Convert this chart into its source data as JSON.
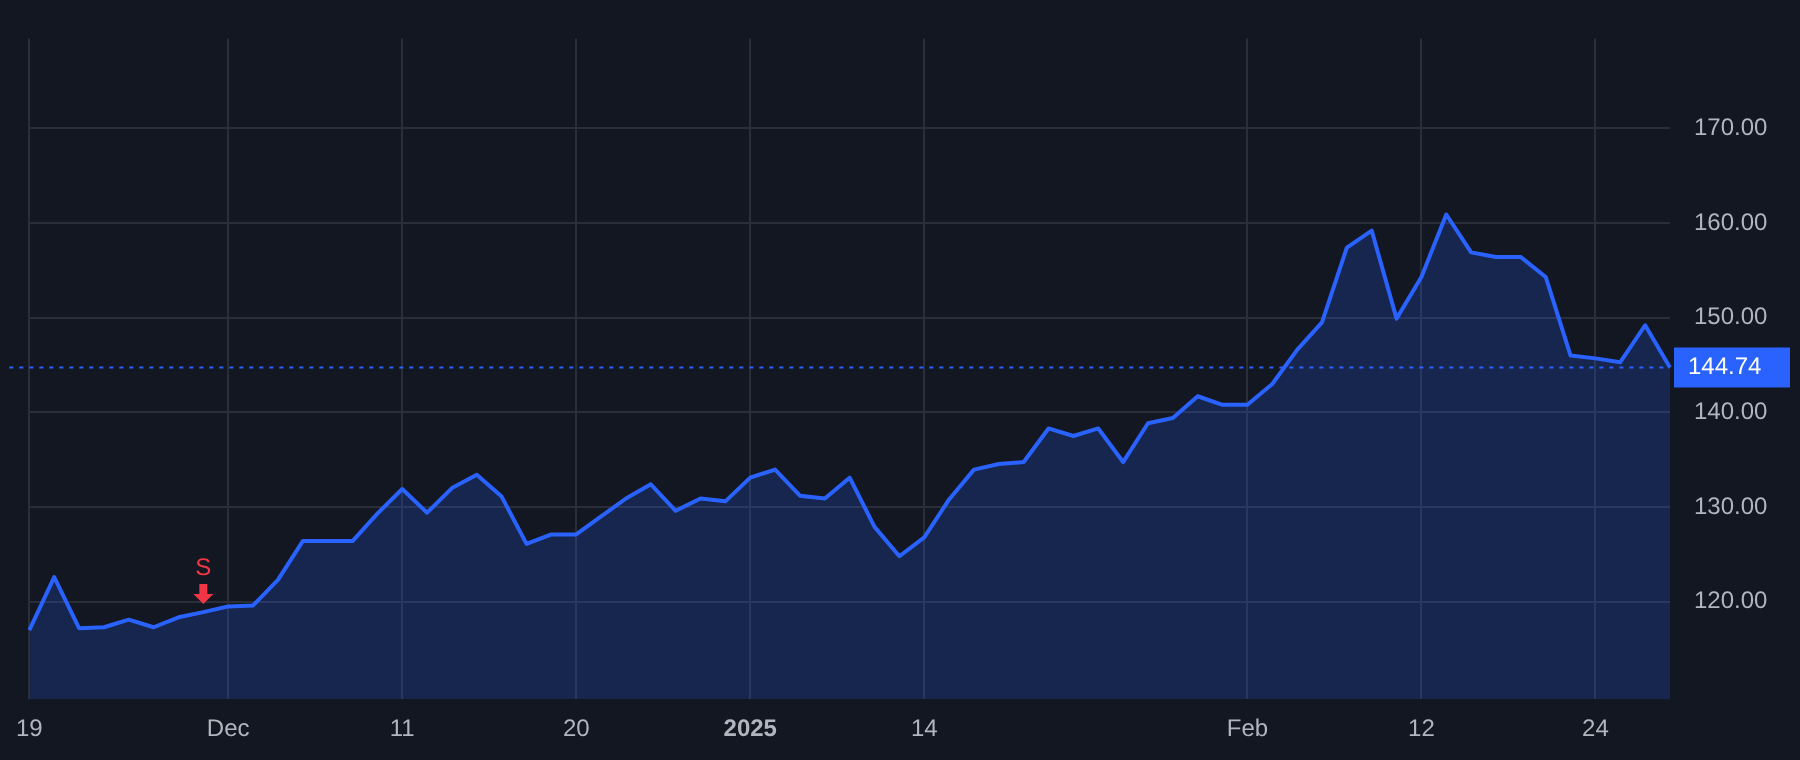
{
  "chart_data": {
    "type": "area",
    "categories": [
      "19",
      null,
      null,
      null,
      null,
      null,
      null,
      null,
      "Dec",
      null,
      null,
      null,
      null,
      null,
      null,
      "11",
      null,
      null,
      null,
      null,
      null,
      null,
      "20",
      null,
      null,
      null,
      null,
      null,
      null,
      "2025",
      null,
      null,
      null,
      null,
      null,
      null,
      "14",
      null,
      null,
      null,
      null,
      null,
      null,
      null,
      null,
      null,
      null,
      null,
      null,
      "Feb",
      null,
      null,
      null,
      null,
      null,
      null,
      "12",
      null,
      null,
      null,
      null,
      null,
      null,
      "24",
      null,
      null,
      null
    ],
    "series": [
      {
        "color": "#2962ff",
        "values": [
          117.0,
          122.6,
          117.2,
          117.3,
          118.1,
          117.3,
          118.35,
          118.9,
          119.5,
          119.6,
          122.3,
          126.4,
          126.4,
          126.4,
          129.3,
          131.9,
          129.4,
          132.0,
          133.4,
          131.1,
          126.1,
          127.1,
          127.1,
          129.0,
          130.9,
          132.4,
          129.6,
          130.9,
          130.6,
          133.1,
          133.95,
          131.2,
          130.9,
          133.1,
          127.9,
          124.8,
          126.8,
          130.8,
          133.95,
          134.55,
          134.75,
          138.3,
          137.5,
          138.3,
          134.75,
          138.85,
          139.4,
          141.7,
          140.8,
          140.8,
          143.0,
          146.6,
          149.5,
          157.4,
          159.2,
          149.9,
          154.3,
          160.9,
          156.9,
          156.4,
          156.4,
          154.3,
          146.0,
          145.7,
          145.3,
          149.2,
          144.74
        ]
      }
    ],
    "ylim": [
      109.7,
      179.5
    ],
    "yticks": [
      {
        "value": 120,
        "label": "120.00"
      },
      {
        "value": 130,
        "label": "130.00"
      },
      {
        "value": 140,
        "label": "140.00"
      },
      {
        "value": 150,
        "label": "150.00"
      },
      {
        "value": 160,
        "label": "160.00"
      },
      {
        "value": 170,
        "label": "170.00"
      }
    ],
    "ref_lines": [
      {
        "axis": "y",
        "value": 144.74,
        "label": "144.74",
        "color": "#2962ff",
        "line_style": "dotted"
      }
    ],
    "annotations": [
      {
        "text": "S",
        "y": 118.9
      }
    ],
    "grid": true,
    "legend": false
  }
}
